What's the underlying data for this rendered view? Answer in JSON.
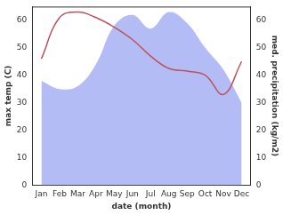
{
  "chart_data": {
    "type": "line",
    "x_label": "date (month)",
    "y_label": "max temp (C)",
    "y2_label": "med. precipitation (kg/m2)",
    "categories": [
      "Jan",
      "Feb",
      "Mar",
      "Apr",
      "May",
      "Jun",
      "Jul",
      "Aug",
      "Sep",
      "Oct",
      "Nov",
      "Dec"
    ],
    "series": [
      {
        "name": "med. precipitation (kg/m2)",
        "type": "area",
        "axis": "y2",
        "color": "#b3bcf5",
        "values": [
          38,
          35,
          36,
          44,
          58,
          62,
          57,
          63,
          59,
          50,
          42,
          30
        ]
      },
      {
        "name": "max temp (C)",
        "type": "line",
        "color": "#c0505a",
        "values": [
          46,
          61,
          63,
          61,
          57.5,
          53,
          47,
          42.5,
          41.5,
          40,
          33,
          45
        ]
      }
    ],
    "ylim": [
      0,
      65
    ],
    "yticks": [
      0,
      10,
      20,
      30,
      40,
      50,
      60
    ],
    "y2lim": [
      0,
      65
    ],
    "y2ticks": [
      0,
      10,
      20,
      30,
      40,
      50,
      60
    ],
    "grid": false
  }
}
